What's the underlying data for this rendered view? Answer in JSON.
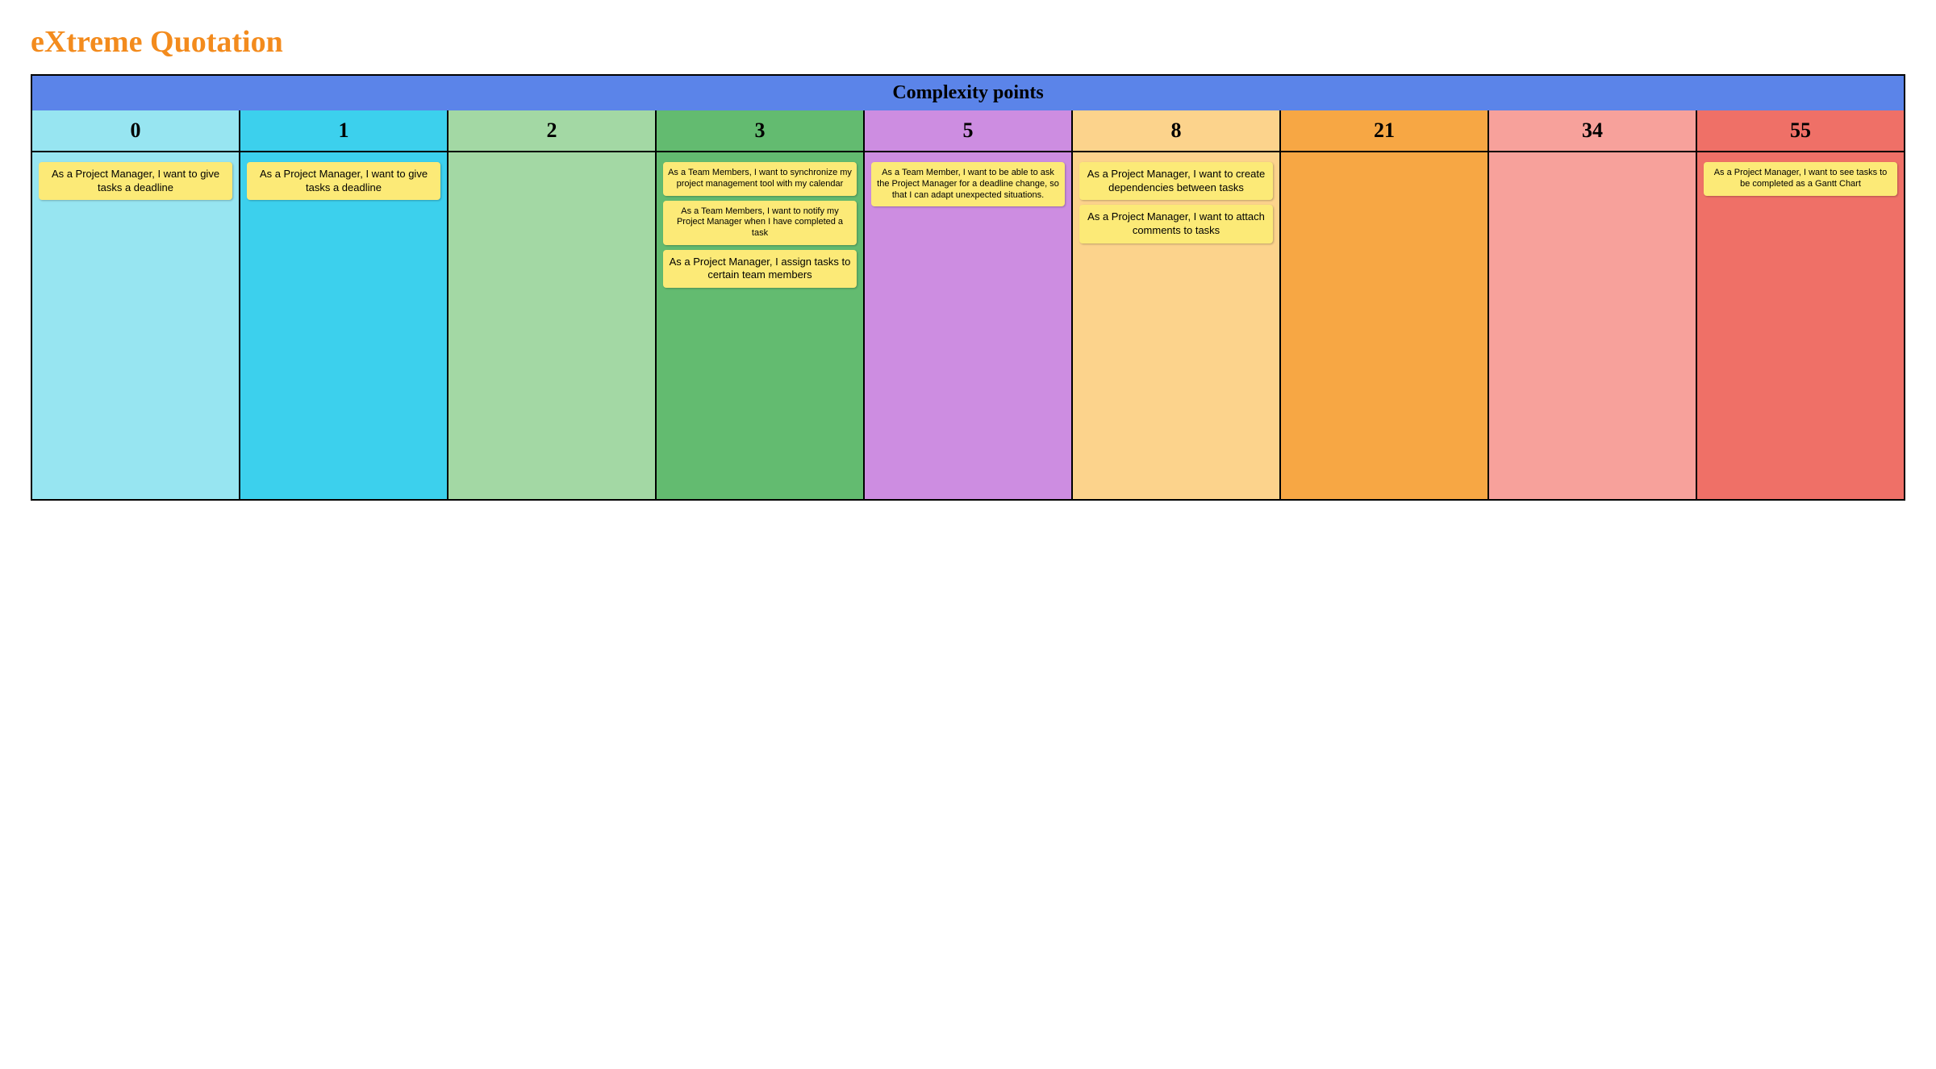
{
  "title": {
    "text": "eXtreme Quotation",
    "color": "#f38b1d"
  },
  "board": {
    "header": {
      "label": "Complexity points",
      "background": "#5b84e9"
    },
    "card_style": {
      "background": "#fcea77",
      "text_color": "#000000"
    },
    "columns": [
      {
        "value": "0",
        "color": "#97e5f1",
        "cards": [
          {
            "text": "As a Project Manager, I want to give tasks a deadline"
          }
        ]
      },
      {
        "value": "1",
        "color": "#3cd0ed",
        "cards": [
          {
            "text": "As a Project Manager, I want to give tasks a deadline"
          }
        ]
      },
      {
        "value": "2",
        "color": "#a3d8a4",
        "cards": []
      },
      {
        "value": "3",
        "color": "#63bb70",
        "cards": [
          {
            "text": "As a Team Members, I want to synchronize my project management tool with my calendar",
            "small": true
          },
          {
            "text": "As a Team Members, I want to notify my Project Manager when I have completed a task",
            "small": true
          },
          {
            "text": "As a Project Manager, I assign tasks to certain team members"
          }
        ]
      },
      {
        "value": "5",
        "color": "#cd8de1",
        "cards": [
          {
            "text": "As a Team Member, I want to be able to ask the Project Manager for a deadline change, so that I can adapt unexpected situations.",
            "small": true
          }
        ]
      },
      {
        "value": "8",
        "color": "#fcd38c",
        "cards": [
          {
            "text": "As a Project Manager, I want to create dependencies between tasks"
          },
          {
            "text": "As a Project Manager, I want to attach comments to tasks"
          }
        ]
      },
      {
        "value": "21",
        "color": "#f7a744",
        "cards": []
      },
      {
        "value": "34",
        "color": "#f7a19b",
        "cards": []
      },
      {
        "value": "55",
        "color": "#ef7067",
        "cards": [
          {
            "text": "As a Project Manager, I want to see tasks to be completed as a Gantt Chart",
            "small": true
          }
        ]
      }
    ]
  }
}
